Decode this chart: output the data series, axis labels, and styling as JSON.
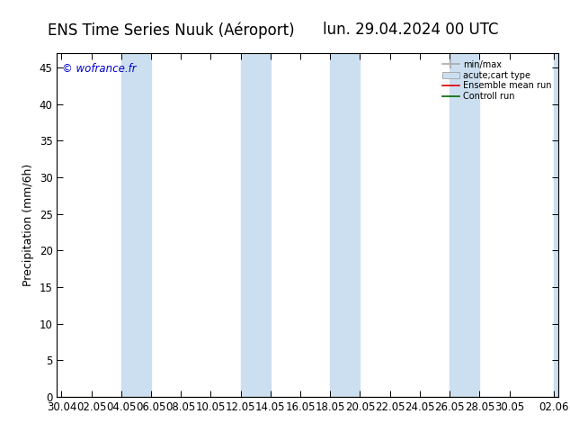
{
  "title_left": "ENS Time Series Nuuk (Aéroport)",
  "title_right": "lun. 29.04.2024 00 UTC",
  "ylabel": "Precipitation (mm/6h)",
  "watermark": "© wofrance.fr",
  "ylim": [
    0,
    47
  ],
  "yticks": [
    0,
    5,
    10,
    15,
    20,
    25,
    30,
    35,
    40,
    45
  ],
  "xtick_labels": [
    "30.04",
    "02.05",
    "04.05",
    "06.05",
    "08.05",
    "10.05",
    "12.05",
    "14.05",
    "16.05",
    "18.05",
    "20.05",
    "22.05",
    "24.05",
    "26.05",
    "28.05",
    "30.05",
    "02.06"
  ],
  "xtick_positions": [
    0,
    2,
    4,
    6,
    8,
    10,
    12,
    14,
    16,
    18,
    20,
    22,
    24,
    26,
    28,
    30,
    33
  ],
  "shaded_bands": [
    [
      4,
      6
    ],
    [
      12,
      14
    ],
    [
      18,
      20
    ],
    [
      26,
      28
    ],
    [
      33,
      34
    ]
  ],
  "band_color": "#ccdff0",
  "background_color": "#ffffff",
  "legend_items": [
    {
      "label": "min/max",
      "color": "#aaaaaa",
      "type": "errorbar"
    },
    {
      "label": "acute;cart type",
      "color": "#ccdff0",
      "type": "box"
    },
    {
      "label": "Ensemble mean run",
      "color": "#dd0000",
      "type": "line"
    },
    {
      "label": "Controll run",
      "color": "#006600",
      "type": "line"
    }
  ],
  "title_fontsize": 12,
  "axis_fontsize": 9,
  "tick_fontsize": 8.5
}
